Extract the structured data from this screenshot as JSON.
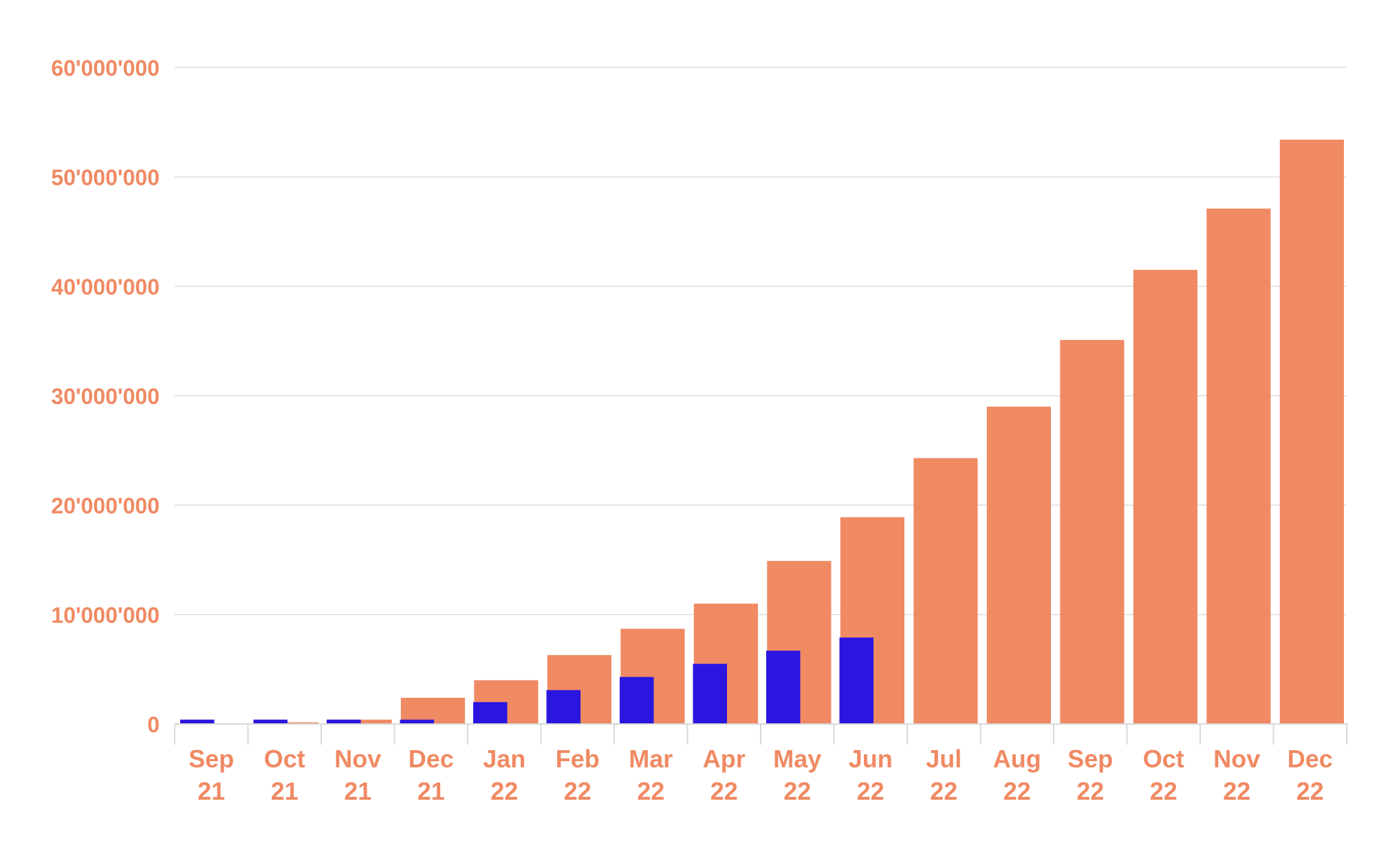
{
  "chart_data": {
    "type": "bar",
    "title": "",
    "xlabel": "",
    "ylabel": "",
    "categories": [
      [
        "Sep",
        "21"
      ],
      [
        "Oct",
        "21"
      ],
      [
        "Nov",
        "21"
      ],
      [
        "Dec",
        "21"
      ],
      [
        "Jan",
        "22"
      ],
      [
        "Feb",
        "22"
      ],
      [
        "Mar",
        "22"
      ],
      [
        "Apr",
        "22"
      ],
      [
        "May",
        "22"
      ],
      [
        "Jun",
        "22"
      ],
      [
        "Jul",
        "22"
      ],
      [
        "Aug",
        "22"
      ],
      [
        "Sep",
        "22"
      ],
      [
        "Oct",
        "22"
      ],
      [
        "Nov",
        "22"
      ],
      [
        "Dec",
        "22"
      ]
    ],
    "series": [
      {
        "color": "#2b16e0",
        "values": [
          400000,
          400000,
          400000,
          400000,
          2000000,
          3100000,
          4300000,
          5500000,
          6700000,
          7900000,
          null,
          null,
          null,
          null,
          null,
          null
        ]
      },
      {
        "color": "#f08a63",
        "values": [
          0,
          150000,
          400000,
          2400000,
          4000000,
          6300000,
          8700000,
          11000000,
          14900000,
          18900000,
          24300000,
          29000000,
          35100000,
          41500000,
          47100000,
          53400000
        ]
      }
    ],
    "ylim": [
      0,
      60000000
    ],
    "yticks": [
      {
        "value": 0,
        "label": "0"
      },
      {
        "value": 10000000,
        "label": "10'000'000"
      },
      {
        "value": 20000000,
        "label": "20'000'000"
      },
      {
        "value": 30000000,
        "label": "30'000'000"
      },
      {
        "value": 40000000,
        "label": "40'000'000"
      },
      {
        "value": 50000000,
        "label": "50'000'000"
      },
      {
        "value": 60000000,
        "label": "60'000'000"
      }
    ],
    "grid": true,
    "legend": "none"
  }
}
